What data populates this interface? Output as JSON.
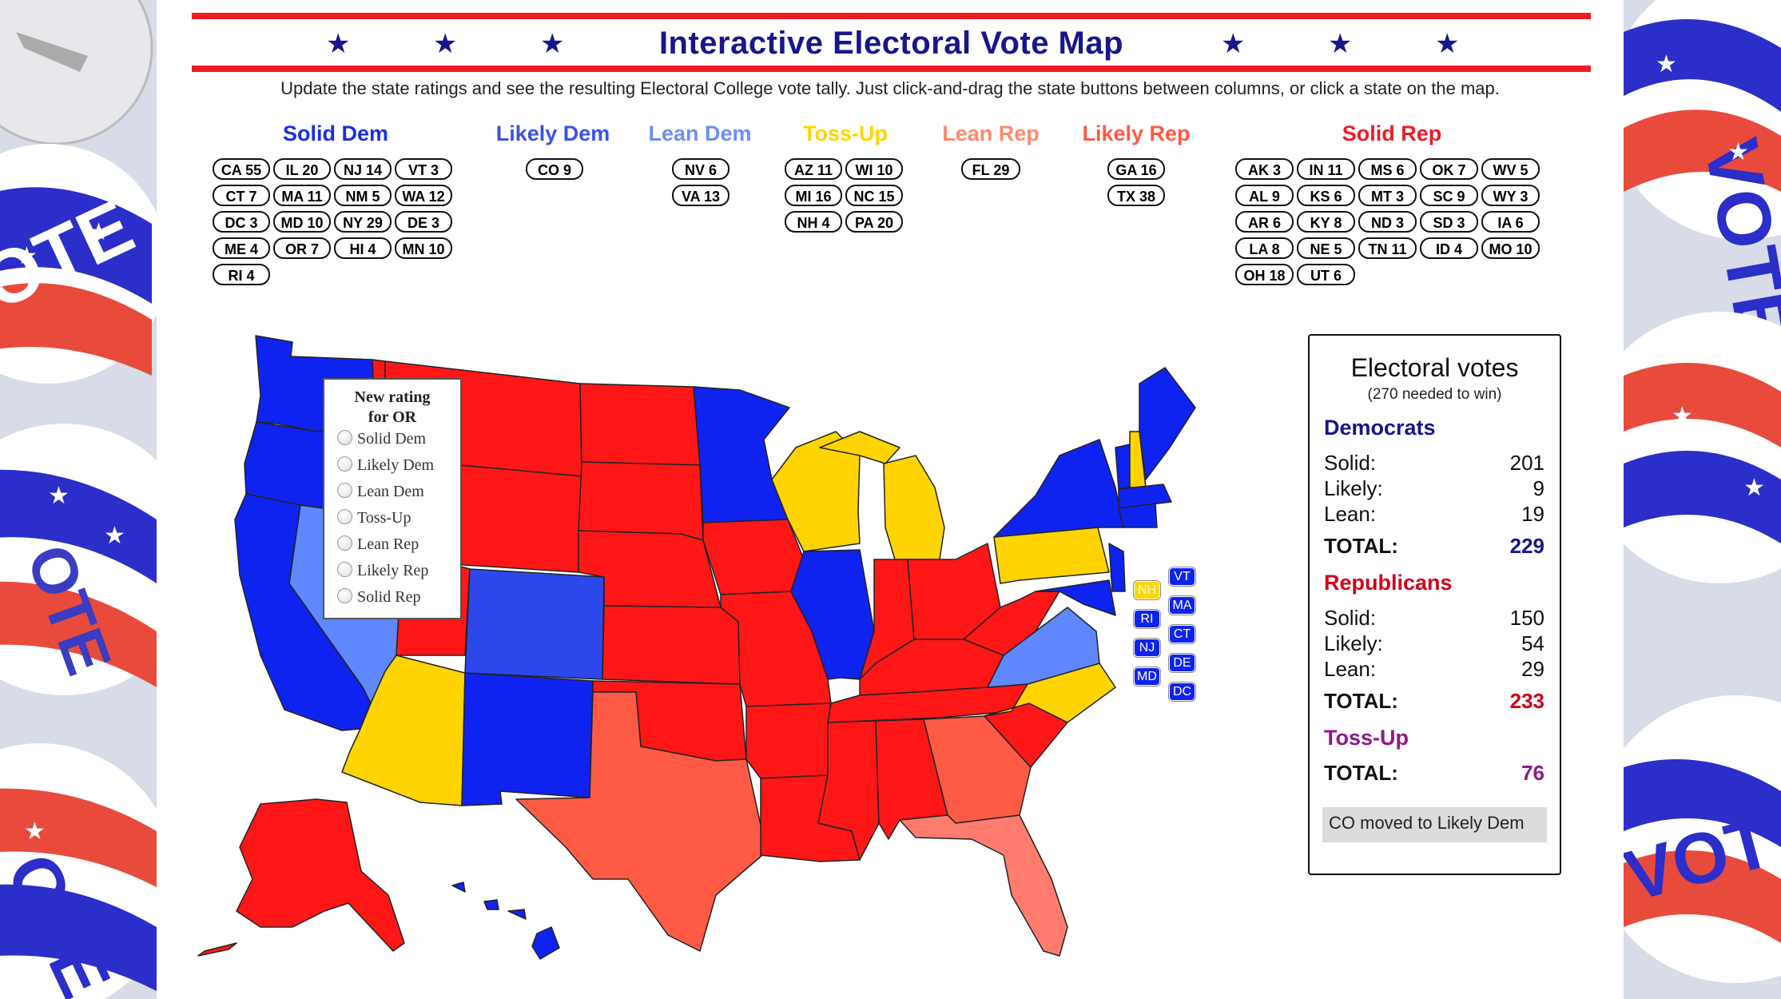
{
  "header": {
    "title": "Interactive Electoral Vote Map",
    "star_icon": "★",
    "subtitle": "Update the state ratings and see the resulting Electoral College vote tally. Just click-and-drag the state buttons between columns, or click a state on the map."
  },
  "colors": {
    "solid_dem": "#0f23f0",
    "likely_dem": "#2d48ea",
    "lean_dem": "#5f87ff",
    "toss_up": "#ffd400",
    "lean_rep": "#ff7c6e",
    "likely_rep": "#ff5a46",
    "solid_rep": "#ff1717",
    "title_blue": "#17168b",
    "rep_red": "#d0021b",
    "toss_purple": "#8b1a8b"
  },
  "columns": [
    {
      "key": "solid_dem",
      "label": "Solid Dem",
      "color": "#1b2fe0",
      "chips": [
        "CA 55",
        "IL 20",
        "NJ 14",
        "VT 3",
        "CT 7",
        "MA 11",
        "NM 5",
        "WA 12",
        "DC 3",
        "MD 10",
        "NY 29",
        "DE 3",
        "ME 4",
        "OR 7",
        "HI 4",
        "MN 10",
        "RI 4"
      ]
    },
    {
      "key": "likely_dem",
      "label": "Likely Dem",
      "color": "#3a52e6",
      "chips": [
        "CO 9"
      ]
    },
    {
      "key": "lean_dem",
      "label": "Lean Dem",
      "color": "#6d8ff2",
      "chips": [
        "NV 6",
        "VA 13"
      ]
    },
    {
      "key": "toss_up",
      "label": "Toss-Up",
      "color": "#ffd400",
      "chips": [
        "AZ 11",
        "WI 10",
        "MI 16",
        "NC 15",
        "NH 4",
        "PA 20"
      ]
    },
    {
      "key": "lean_rep",
      "label": "Lean Rep",
      "color": "#ff8a6e",
      "chips": [
        "FL 29"
      ]
    },
    {
      "key": "likely_rep",
      "label": "Likely Rep",
      "color": "#ff5a46",
      "chips": [
        "GA 16",
        "TX 38"
      ]
    },
    {
      "key": "solid_rep",
      "label": "Solid Rep",
      "color": "#ee1c24",
      "chips": [
        "AK 3",
        "IN 11",
        "MS 6",
        "OK 7",
        "WV 5",
        "AL 9",
        "KS 6",
        "MT 3",
        "SC 9",
        "WY 3",
        "AR 6",
        "KY 8",
        "ND 3",
        "SD 3",
        "IA 6",
        "LA 8",
        "NE 5",
        "TN 11",
        "ID 4",
        "MO 10",
        "OH 18",
        "UT 6"
      ]
    }
  ],
  "popup": {
    "title_line1": "New rating",
    "title_line2": "for OR",
    "options": [
      "Solid Dem",
      "Likely Dem",
      "Lean Dem",
      "Toss-Up",
      "Lean Rep",
      "Likely Rep",
      "Solid Rep"
    ]
  },
  "small_states": [
    {
      "label": "NH",
      "rating": "toss_up"
    },
    {
      "label": "RI",
      "rating": "solid_dem"
    },
    {
      "label": "NJ",
      "rating": "solid_dem"
    },
    {
      "label": "MD",
      "rating": "solid_dem"
    },
    {
      "label": "VT",
      "rating": "solid_dem"
    },
    {
      "label": "MA",
      "rating": "solid_dem"
    },
    {
      "label": "CT",
      "rating": "solid_dem"
    },
    {
      "label": "DE",
      "rating": "solid_dem"
    },
    {
      "label": "DC",
      "rating": "solid_dem"
    }
  ],
  "tally": {
    "title": "Electoral votes",
    "subtitle": "(270 needed to win)",
    "democrats": {
      "label": "Democrats",
      "solid_label": "Solid:",
      "solid": "201",
      "likely_label": "Likely:",
      "likely": "9",
      "lean_label": "Lean:",
      "lean": "19",
      "total_label": "TOTAL:",
      "total": "229"
    },
    "republicans": {
      "label": "Republicans",
      "solid_label": "Solid:",
      "solid": "150",
      "likely_label": "Likely:",
      "likely": "54",
      "lean_label": "Lean:",
      "lean": "29",
      "total_label": "TOTAL:",
      "total": "233"
    },
    "tossup": {
      "label": "Toss-Up",
      "total_label": "TOTAL:",
      "total": "76"
    },
    "status": "CO moved to Likely Dem"
  }
}
